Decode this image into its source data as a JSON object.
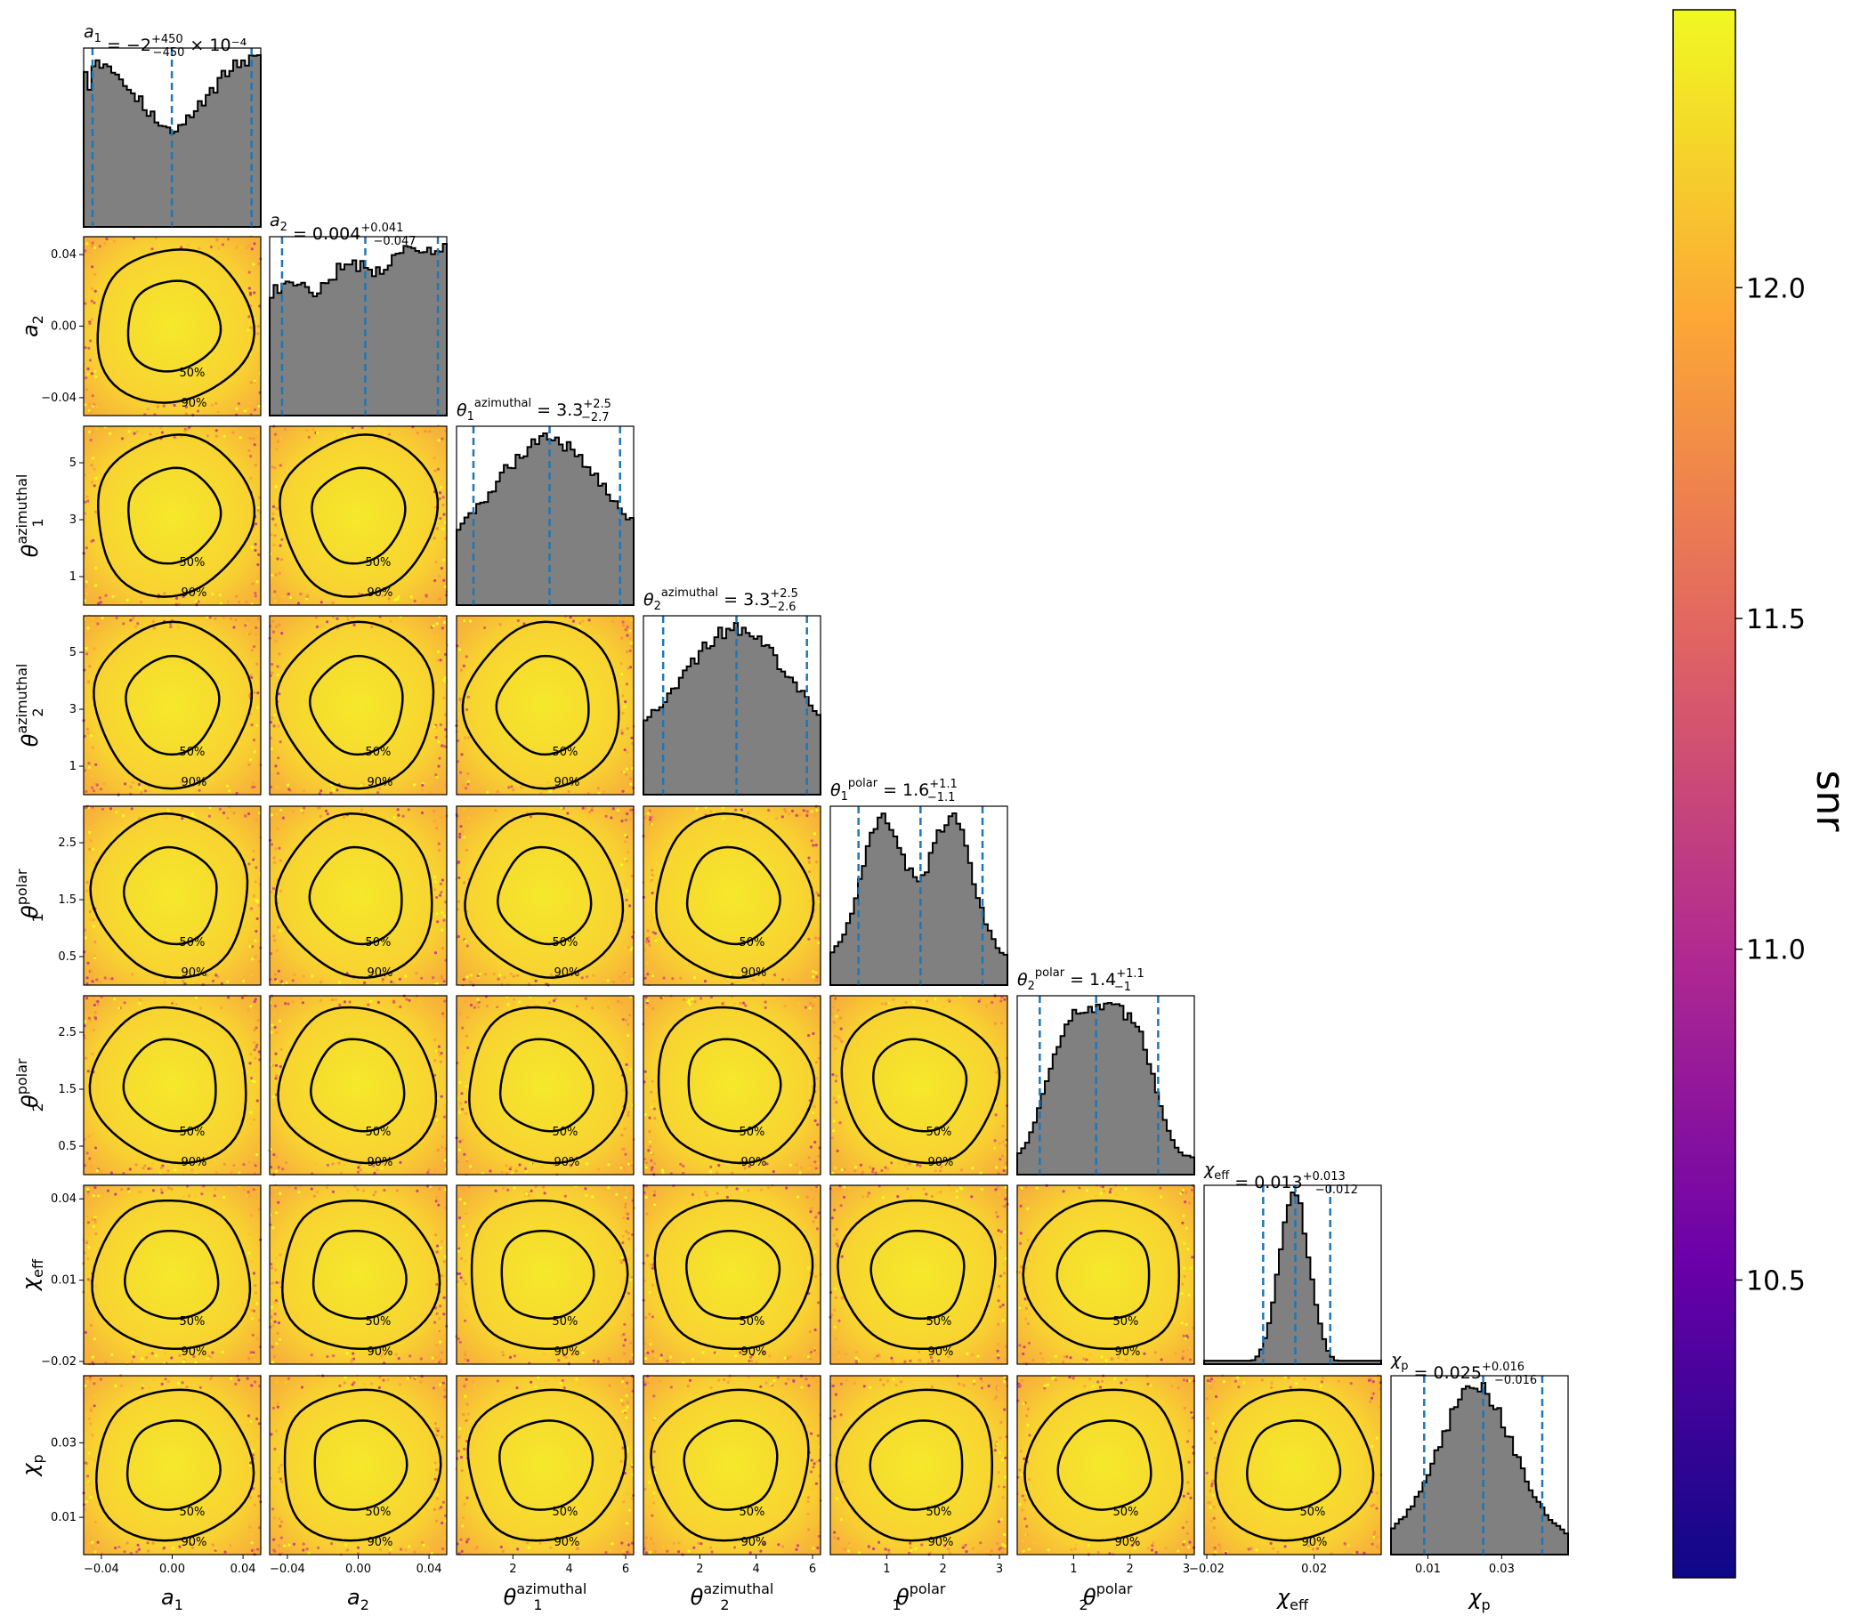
{
  "chart_data": {
    "type": "scatter",
    "description_type": "corner",
    "colorbar": {
      "label": "snr",
      "ticks": [
        10.5,
        11.0,
        11.5,
        12.0
      ],
      "range": [
        10.05,
        12.42
      ],
      "colormap": [
        "#0d0887",
        "#6a00a8",
        "#b12a90",
        "#e16462",
        "#fca636",
        "#f0f921"
      ]
    },
    "hist_color": "#808080",
    "quantile_color": "#1f77b4",
    "contour_levels": [
      "50%",
      "90%"
    ],
    "parameters": [
      {
        "key": "a1",
        "label_main": "a",
        "label_sub": "1",
        "label_sup": "",
        "title_prefix": "a",
        "title_sub": "1",
        "title_eq": " = −2",
        "title_sup": "+450",
        "title_low": "−450",
        "title_suffix": " × 10⁻⁴",
        "range": [
          -0.05,
          0.05
        ],
        "ticks": [
          -0.04,
          0.0,
          0.04
        ],
        "tick_labels": [
          "−0.04",
          "0.00",
          "0.04"
        ],
        "quantiles": [
          -0.045,
          -0.0002,
          0.0448
        ],
        "hist_shape": "bimodal_edges"
      },
      {
        "key": "a2",
        "label_main": "a",
        "label_sub": "2",
        "label_sup": "",
        "title_prefix": "a",
        "title_sub": "2",
        "title_eq": " = 0.004",
        "title_sup": "+0.041",
        "title_low": "−0.047",
        "title_suffix": "",
        "range": [
          -0.05,
          0.05
        ],
        "ticks": [
          -0.04,
          0.0,
          0.04
        ],
        "tick_labels": [
          "−0.04",
          "0.00",
          "0.04"
        ],
        "quantiles": [
          -0.043,
          0.004,
          0.045
        ],
        "hist_shape": "rising"
      },
      {
        "key": "theta1_az",
        "label_main": "θ",
        "label_sub": "1",
        "label_sup": "azimuthal",
        "title_prefix": "θ",
        "title_sub": "1",
        "title_sup_prefix": "azimuthal",
        "title_eq": " = 3.3",
        "title_sup": "+2.5",
        "title_low": "−2.7",
        "title_suffix": "",
        "range": [
          0,
          6.283
        ],
        "ticks": [
          1,
          3,
          5
        ],
        "tick_labels": [
          "1",
          "3",
          "5"
        ],
        "bottom_ticks": [
          2,
          4,
          6
        ],
        "bottom_tick_labels": [
          "2",
          "4",
          "6"
        ],
        "quantiles": [
          0.6,
          3.3,
          5.8
        ],
        "hist_shape": "tent"
      },
      {
        "key": "theta2_az",
        "label_main": "θ",
        "label_sub": "2",
        "label_sup": "azimuthal",
        "title_prefix": "θ",
        "title_sub": "2",
        "title_sup_prefix": "azimuthal",
        "title_eq": " = 3.3",
        "title_sup": "+2.5",
        "title_low": "−2.6",
        "title_suffix": "",
        "range": [
          0,
          6.283
        ],
        "ticks": [
          1,
          3,
          5
        ],
        "tick_labels": [
          "1",
          "3",
          "5"
        ],
        "bottom_ticks": [
          2,
          4,
          6
        ],
        "bottom_tick_labels": [
          "2",
          "4",
          "6"
        ],
        "quantiles": [
          0.7,
          3.3,
          5.8
        ],
        "hist_shape": "tent"
      },
      {
        "key": "theta1_pol",
        "label_main": "θ",
        "label_sub": "1",
        "label_sup": "polar",
        "title_prefix": "θ",
        "title_sub": "1",
        "title_sup_prefix": "polar",
        "title_eq": " = 1.6",
        "title_sup": "+1.1",
        "title_low": "−1.1",
        "title_suffix": "",
        "range": [
          0,
          3.1416
        ],
        "ticks": [
          0.5,
          1.5,
          2.5
        ],
        "tick_labels": [
          "0.5",
          "1.5",
          "2.5"
        ],
        "bottom_ticks": [
          1,
          2,
          3
        ],
        "bottom_tick_labels": [
          "1",
          "2",
          "3"
        ],
        "quantiles": [
          0.5,
          1.6,
          2.7
        ],
        "hist_shape": "bimodal_mid"
      },
      {
        "key": "theta2_pol",
        "label_main": "θ",
        "label_sub": "2",
        "label_sup": "polar",
        "title_prefix": "θ",
        "title_sub": "2",
        "title_sup_prefix": "polar",
        "title_eq": " = 1.4",
        "title_sup": "+1.1",
        "title_low": "−1",
        "title_suffix": "",
        "range": [
          0,
          3.1416
        ],
        "ticks": [
          0.5,
          1.5,
          2.5
        ],
        "tick_labels": [
          "0.5",
          "1.5",
          "2.5"
        ],
        "bottom_ticks": [
          1,
          2,
          3
        ],
        "bottom_tick_labels": [
          "1",
          "2",
          "3"
        ],
        "quantiles": [
          0.4,
          1.4,
          2.5
        ],
        "hist_shape": "broad"
      },
      {
        "key": "chi_eff",
        "label_main": "χ",
        "label_sub": "eff",
        "label_sup": "",
        "title_prefix": "χ",
        "title_sub": "eff",
        "title_eq": " = 0.013",
        "title_sup": "+0.013",
        "title_low": "−0.012",
        "title_suffix": "",
        "range": [
          -0.021,
          0.045
        ],
        "ticks": [
          -0.02,
          0.01,
          0.04
        ],
        "tick_labels": [
          "−0.02",
          "0.01",
          "0.04"
        ],
        "bottom_ticks": [
          -0.02,
          0.02
        ],
        "bottom_tick_labels": [
          "−0.02",
          "0.02"
        ],
        "quantiles": [
          0.001,
          0.013,
          0.026
        ],
        "hist_shape": "narrow"
      },
      {
        "key": "chi_p",
        "label_main": "χ",
        "label_sub": "p",
        "label_sup": "",
        "title_prefix": "χ",
        "title_sub": "p",
        "title_eq": " = 0.025",
        "title_sup": "+0.016",
        "title_low": "−0.016",
        "title_suffix": "",
        "range": [
          0.0,
          0.048
        ],
        "ticks": [
          0.01,
          0.03
        ],
        "tick_labels": [
          "0.01",
          "0.03"
        ],
        "bottom_ticks": [
          0.01,
          0.03
        ],
        "bottom_tick_labels": [
          "0.01",
          "0.03"
        ],
        "quantiles": [
          0.009,
          0.025,
          0.041
        ],
        "hist_shape": "gauss"
      }
    ]
  }
}
